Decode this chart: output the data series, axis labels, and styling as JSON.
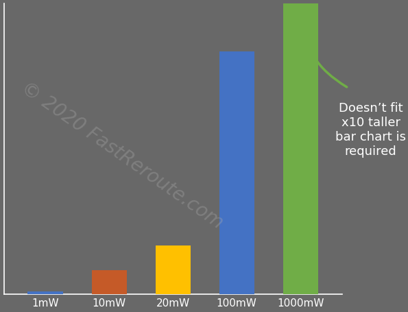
{
  "categories": [
    "1mW",
    "10mW",
    "20mW",
    "100mW",
    "1000mW"
  ],
  "values": [
    1,
    10,
    20,
    100,
    1000
  ],
  "bar_colors": [
    "#4472C4",
    "#C55A28",
    "#FFC000",
    "#4472C4",
    "#70AD47"
  ],
  "background_color": "#686868",
  "axis_color": "#ffffff",
  "ylim": [
    0,
    120
  ],
  "bar_width": 0.55,
  "annotation_text": "Doesn’t fit\nx10 taller\nbar chart is\nrequired",
  "annotation_color": "#ffffff",
  "annotation_fontsize": 13,
  "arrow_color": "#70AD47",
  "watermark_text": "© 2020 FastReroute.com",
  "watermark_color": "#aaaaaa",
  "watermark_alpha": 0.35,
  "watermark_fontsize": 20,
  "watermark_rotation": -35,
  "tick_fontsize": 11
}
